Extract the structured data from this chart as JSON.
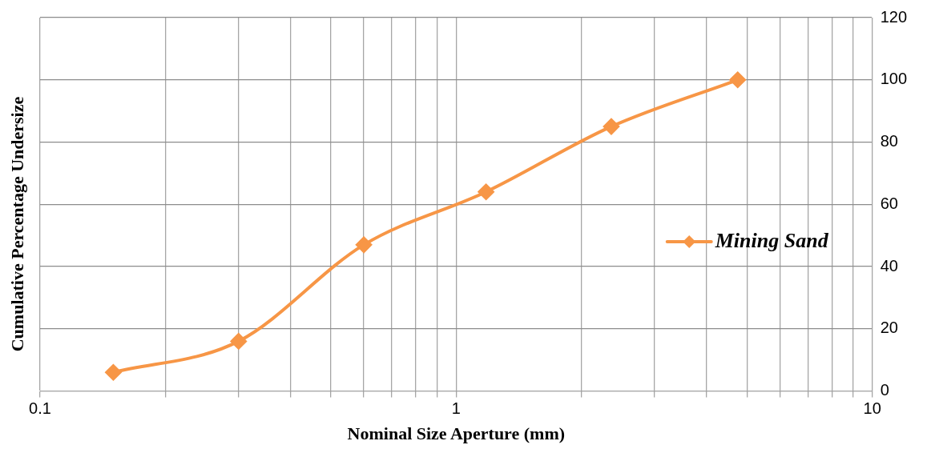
{
  "chart_data": {
    "type": "line",
    "xlabel": "Nominal Size Aperture (mm)",
    "ylabel": "Cumulative Percentage Undersize",
    "x": [
      0.15,
      0.3,
      0.6,
      1.18,
      2.36,
      4.75
    ],
    "series": [
      {
        "name": "Mining Sand",
        "color": "#f79646",
        "values": [
          6,
          16,
          47,
          64,
          85,
          100
        ]
      }
    ],
    "log": "x",
    "xlim": [
      0.1,
      10
    ],
    "xticks": [
      0.1,
      {
        "value": 0.2,
        "label": null
      },
      {
        "value": 0.3,
        "label": null
      },
      {
        "value": 0.4,
        "label": null
      },
      {
        "value": 0.5,
        "label": null
      },
      {
        "value": 0.6,
        "label": null
      },
      {
        "value": 0.7,
        "label": null
      },
      {
        "value": 0.8,
        "label": null
      },
      {
        "value": 0.9,
        "label": null
      },
      1,
      {
        "value": 2,
        "label": null
      },
      {
        "value": 3,
        "label": null
      },
      {
        "value": 4,
        "label": null
      },
      {
        "value": 5,
        "label": null
      },
      {
        "value": 6,
        "label": null
      },
      {
        "value": 7,
        "label": null
      },
      {
        "value": 8,
        "label": null
      },
      {
        "value": 9,
        "label": null
      },
      10
    ],
    "ylim": [
      0,
      120
    ],
    "yticks": [
      0,
      20,
      40,
      60,
      80,
      100,
      120
    ],
    "grid": true,
    "legend": "right",
    "marker": "diamond",
    "line_style": "solid"
  }
}
